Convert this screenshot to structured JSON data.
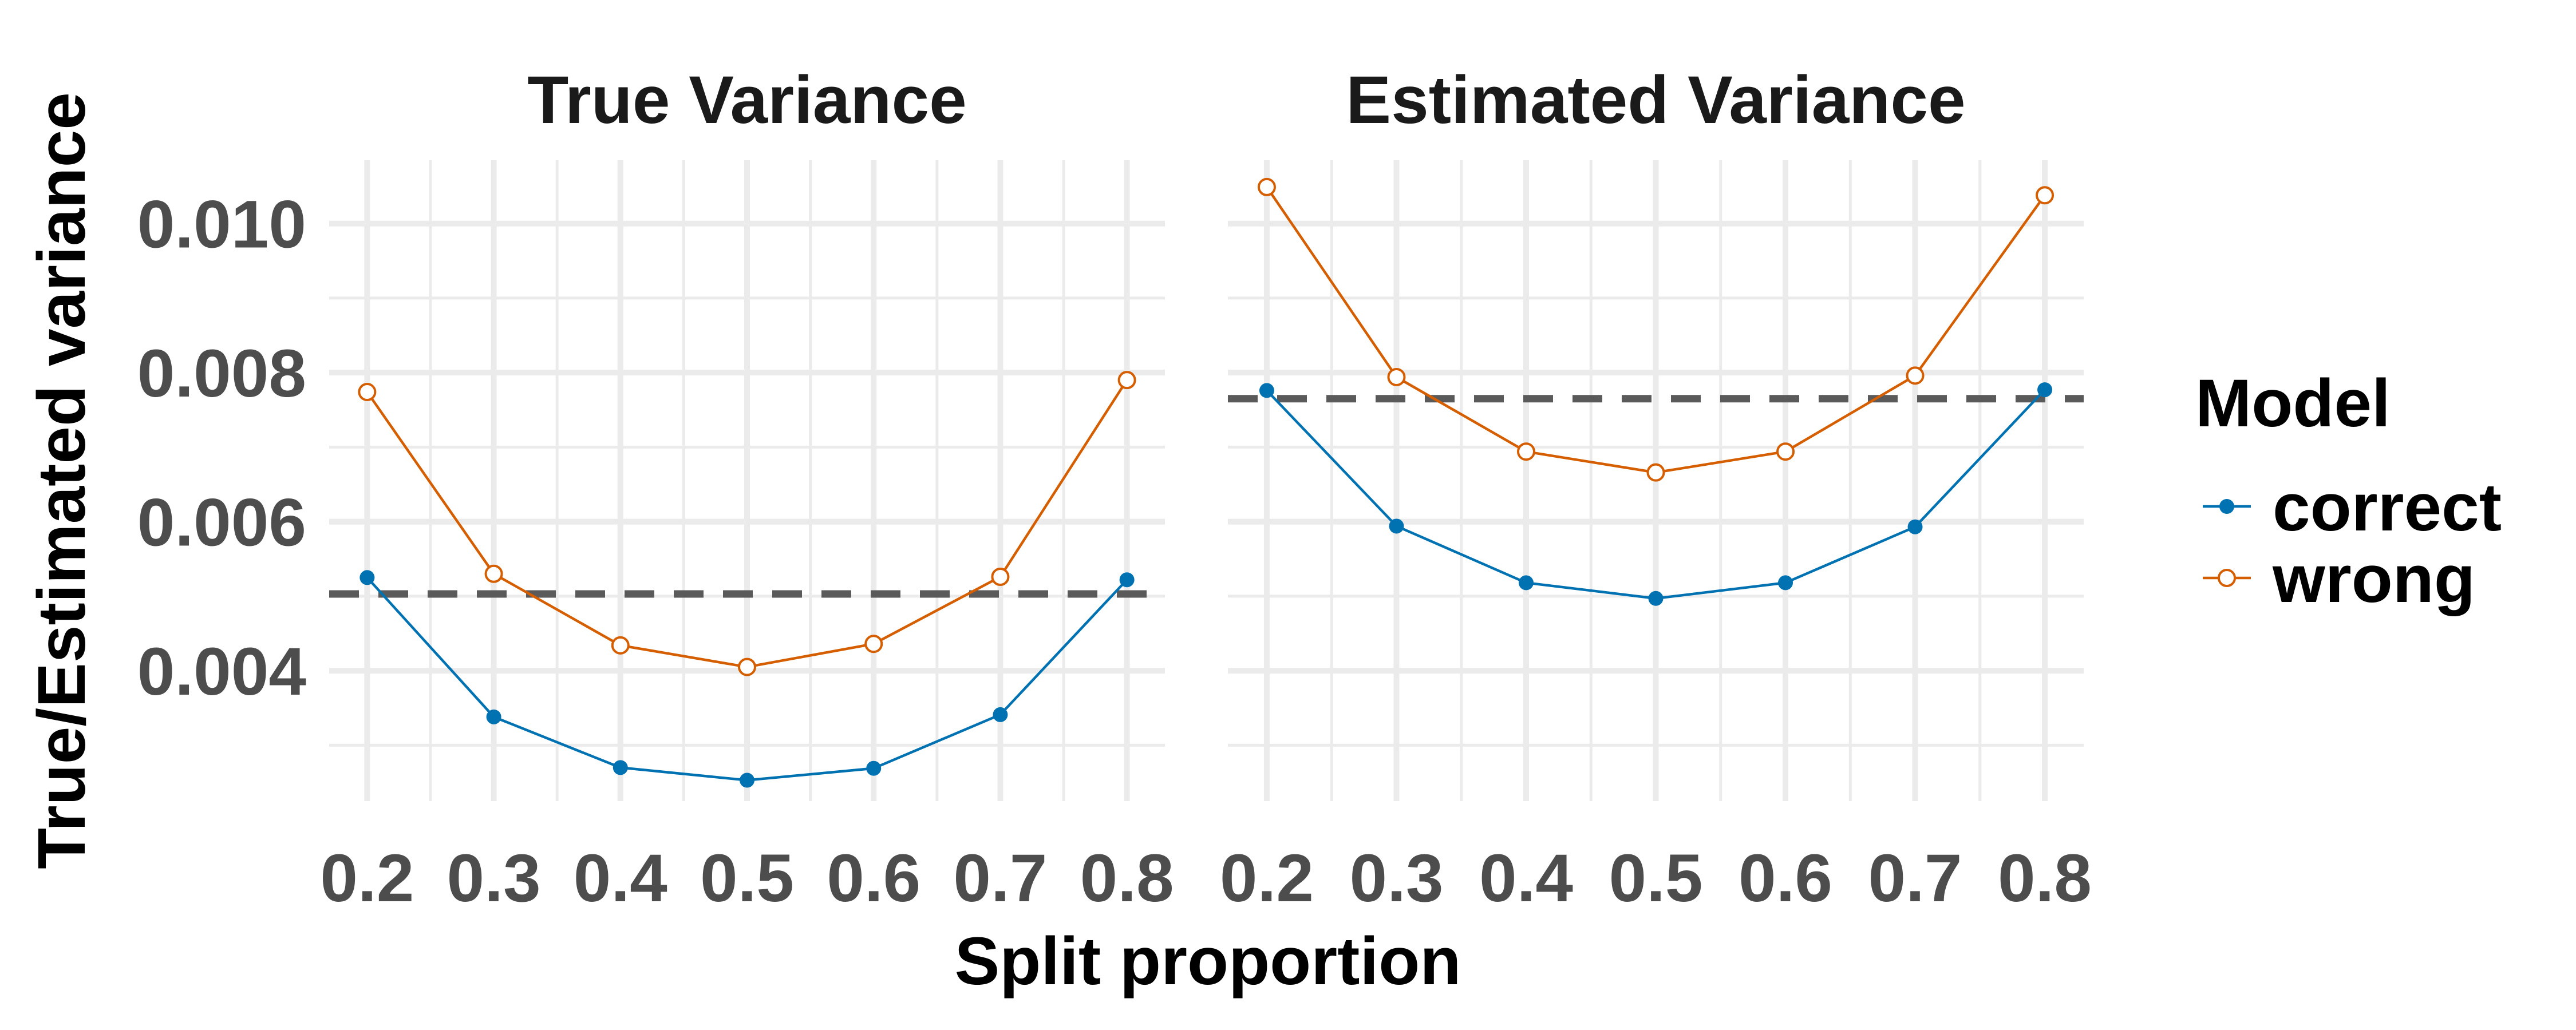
{
  "chart_data": {
    "type": "line",
    "xlabel": "Split proportion",
    "ylabel": "True/Estimated variance",
    "x": [
      0.2,
      0.3,
      0.4,
      0.5,
      0.6,
      0.7,
      0.8
    ],
    "x_tick_labels": [
      "0.2",
      "0.3",
      "0.4",
      "0.5",
      "0.6",
      "0.7",
      "0.8"
    ],
    "y_ticks": [
      0.004,
      0.006,
      0.008,
      0.01
    ],
    "y_tick_labels": [
      "0.004",
      "0.006",
      "0.008",
      "0.010"
    ],
    "xlim": [
      0.17,
      0.83
    ],
    "ylim": [
      0.00225,
      0.01085
    ],
    "grid": true,
    "legend": {
      "title": "Model",
      "position": "right",
      "entries": [
        {
          "name": "correct",
          "color": "#0072B2",
          "marker": "filled-circle"
        },
        {
          "name": "wrong",
          "color": "#D55E00",
          "marker": "open-circle"
        }
      ]
    },
    "panels": [
      {
        "title": "True Variance",
        "reference_line": 0.00503,
        "series": [
          {
            "name": "correct",
            "values": [
              0.00525,
              0.00338,
              0.0027,
              0.00253,
              0.00269,
              0.00341,
              0.00522
            ]
          },
          {
            "name": "wrong",
            "values": [
              0.00774,
              0.0053,
              0.00434,
              0.00405,
              0.00436,
              0.00526,
              0.0079
            ]
          }
        ]
      },
      {
        "title": "Estimated Variance",
        "reference_line": 0.00765,
        "series": [
          {
            "name": "correct",
            "values": [
              0.00776,
              0.00594,
              0.00518,
              0.00497,
              0.00518,
              0.00593,
              0.00777
            ]
          },
          {
            "name": "wrong",
            "values": [
              0.01049,
              0.00794,
              0.00694,
              0.00666,
              0.00694,
              0.00796,
              0.01038
            ]
          }
        ]
      }
    ]
  }
}
